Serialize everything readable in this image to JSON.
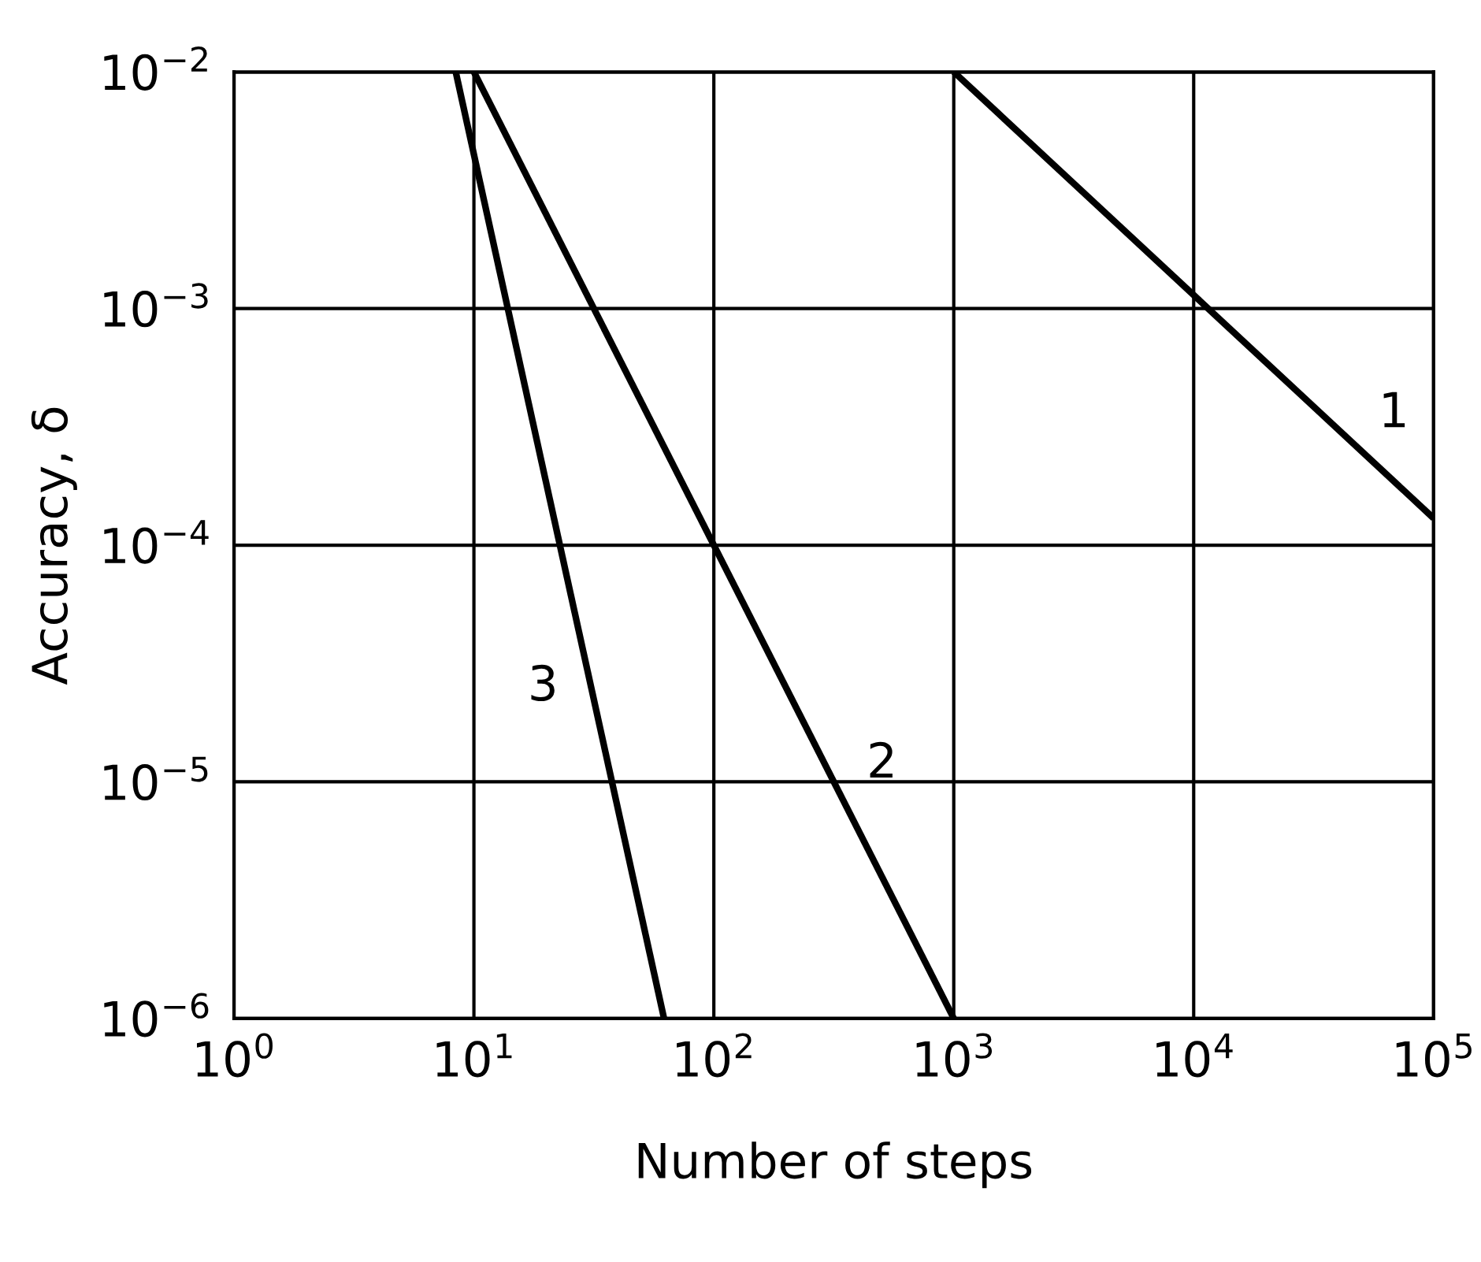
{
  "chart_data": {
    "type": "line",
    "xlabel": "Number of steps",
    "ylabel": "Accuracy, δ",
    "log": "xy",
    "grid": true,
    "line_style": "solid",
    "marker": "none",
    "xlim": [
      1,
      100000
    ],
    "ylim": [
      1e-06,
      0.01
    ],
    "xticks": [
      {
        "value": 1,
        "label": "10$^{0}$"
      },
      {
        "value": 10,
        "label": "10$^{1}$"
      },
      {
        "value": 100,
        "label": "10$^{2}$"
      },
      {
        "value": 1000,
        "label": "10$^{3}$"
      },
      {
        "value": 10000,
        "label": "10$^{4}$"
      },
      {
        "value": 100000,
        "label": "10$^{5}$"
      }
    ],
    "yticks": [
      {
        "value": 1e-06,
        "label": "10$^{−6}$"
      },
      {
        "value": 1e-05,
        "label": "10$^{−5}$"
      },
      {
        "value": 0.0001,
        "label": "10$^{−4}$"
      },
      {
        "value": 0.001,
        "label": "10$^{−3}$"
      },
      {
        "value": 0.01,
        "label": "10$^{−2}$"
      }
    ],
    "series": [
      {
        "name": "1",
        "color": "#000000",
        "x": [
          1000,
          100000
        ],
        "values": [
          0.01,
          0.00013
        ]
      },
      {
        "name": "2",
        "color": "#000000",
        "x": [
          10,
          1000
        ],
        "values": [
          0.01,
          1e-06
        ]
      },
      {
        "name": "3",
        "color": "#000000",
        "x": [
          8.4,
          62
        ],
        "values": [
          0.01,
          1e-06
        ]
      }
    ]
  }
}
